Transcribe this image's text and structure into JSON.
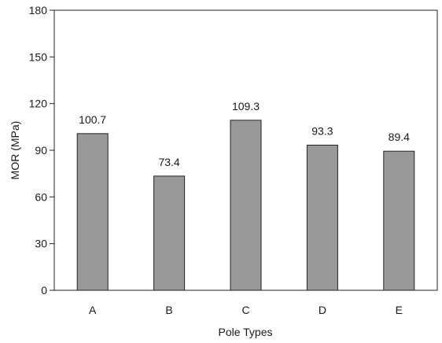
{
  "chart_data": {
    "type": "bar",
    "categories": [
      "A",
      "B",
      "C",
      "D",
      "E"
    ],
    "values": [
      100.7,
      73.4,
      109.3,
      93.3,
      89.4
    ],
    "value_labels": [
      "100.7",
      "73.4",
      "109.3",
      "93.3",
      "89.4"
    ],
    "xlabel": "Pole Types",
    "ylabel": "MOR (MPa)",
    "ylim": [
      0,
      180
    ],
    "yticks": [
      "0",
      "30",
      "60",
      "90",
      "120",
      "150",
      "180"
    ],
    "grid": false,
    "legend": "none",
    "bar_color": "#999999",
    "bar_edge_color": "#222222"
  }
}
